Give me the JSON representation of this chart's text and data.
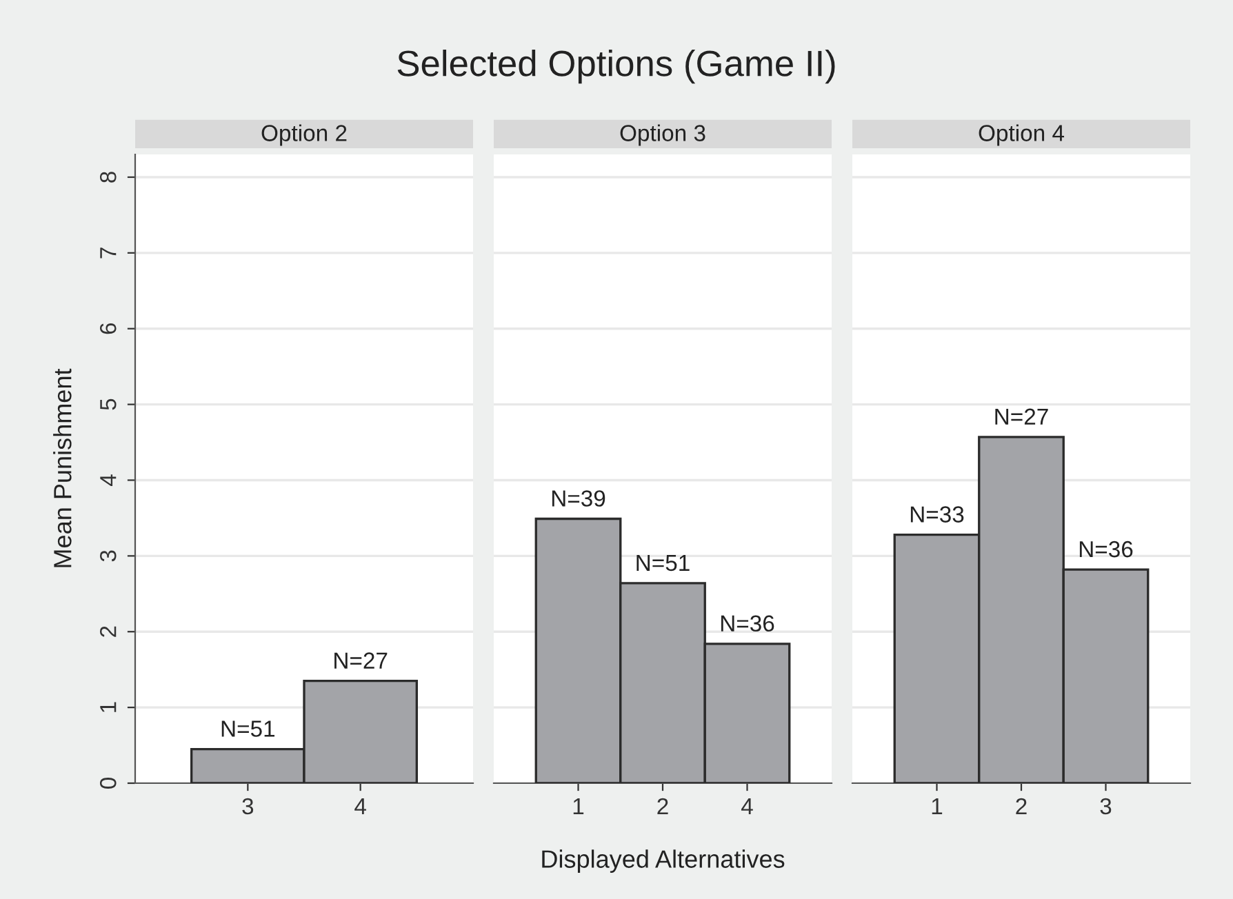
{
  "chart_data": [
    {
      "type": "bar",
      "title": "Option 2",
      "ylabel": "Mean Punishment",
      "categories": [
        "3",
        "4"
      ],
      "values": [
        0.45,
        1.35
      ],
      "color": "#a3a4a8",
      "ylim": [
        0,
        8.3
      ],
      "yticks": [
        0,
        1,
        2,
        3,
        4,
        5,
        6,
        7,
        8
      ],
      "grid": "y",
      "annotations": [
        "Selected Options (Game II)",
        {
          "text": "N=51",
          "x": "3",
          "y": 0.45
        },
        {
          "text": "N=27",
          "x": "4",
          "y": 1.35
        }
      ]
    },
    {
      "type": "bar",
      "title": "Option 3",
      "xlabel": "Displayed Alternatives",
      "categories": [
        "1",
        "2",
        "4"
      ],
      "values": [
        3.49,
        2.64,
        1.84
      ],
      "color": "#a3a4a8",
      "ylim": [
        0,
        8.3
      ],
      "yticks": [
        0,
        1,
        2,
        3,
        4,
        5,
        6,
        7,
        8
      ],
      "grid": "y",
      "tick_labels": "x",
      "annotations": [
        {
          "text": "N=39",
          "x": "1",
          "y": 3.49
        },
        {
          "text": "N=51",
          "x": "2",
          "y": 2.64
        },
        {
          "text": "N=36",
          "x": "4",
          "y": 1.84
        }
      ]
    },
    {
      "type": "bar",
      "title": "Option 4",
      "categories": [
        "1",
        "2",
        "3"
      ],
      "values": [
        3.28,
        4.57,
        2.82
      ],
      "color": "#a3a4a8",
      "ylim": [
        0,
        8.3
      ],
      "yticks": [
        0,
        1,
        2,
        3,
        4,
        5,
        6,
        7,
        8
      ],
      "grid": "y",
      "tick_labels": "x",
      "annotations": [
        {
          "text": "N=33",
          "x": "1",
          "y": 3.28
        },
        {
          "text": "N=27",
          "x": "2",
          "y": 4.57
        },
        {
          "text": "N=36",
          "x": "3",
          "y": 2.82
        }
      ]
    }
  ]
}
